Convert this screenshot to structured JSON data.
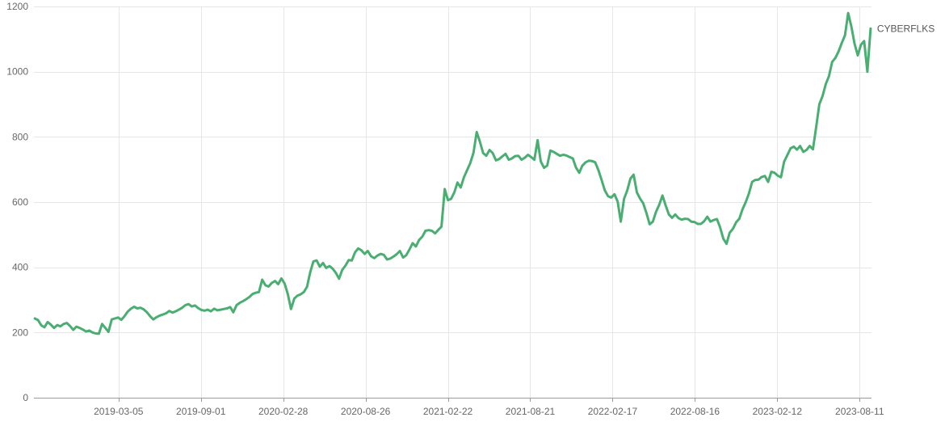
{
  "chart_data": {
    "type": "line",
    "x_axis_type": "time",
    "xlim": [
      "2018-09-01",
      "2023-09-06"
    ],
    "ylim": [
      0,
      1200
    ],
    "xticks": [
      "2019-03-05",
      "2019-09-01",
      "2020-02-28",
      "2020-08-26",
      "2021-02-22",
      "2021-08-21",
      "2022-02-17",
      "2022-08-16",
      "2023-02-12",
      "2023-08-11"
    ],
    "yticks": [
      0,
      200,
      400,
      600,
      800,
      1000,
      1200
    ],
    "grid": true,
    "legend": "none",
    "series_name_position": "line-end",
    "x": [
      "2018-09-03",
      "2018-09-10",
      "2018-09-17",
      "2018-09-24",
      "2018-10-01",
      "2018-10-08",
      "2018-10-15",
      "2018-10-22",
      "2018-10-29",
      "2018-11-05",
      "2018-11-12",
      "2018-11-19",
      "2018-11-26",
      "2018-12-03",
      "2018-12-10",
      "2018-12-17",
      "2018-12-24",
      "2018-12-31",
      "2019-01-07",
      "2019-01-14",
      "2019-01-21",
      "2019-01-28",
      "2019-02-04",
      "2019-02-11",
      "2019-02-18",
      "2019-02-25",
      "2019-03-04",
      "2019-03-11",
      "2019-03-18",
      "2019-03-25",
      "2019-04-01",
      "2019-04-08",
      "2019-04-15",
      "2019-04-22",
      "2019-04-29",
      "2019-05-06",
      "2019-05-13",
      "2019-05-20",
      "2019-05-27",
      "2019-06-03",
      "2019-06-10",
      "2019-06-17",
      "2019-06-24",
      "2019-07-01",
      "2019-07-08",
      "2019-07-15",
      "2019-07-22",
      "2019-07-29",
      "2019-08-05",
      "2019-08-12",
      "2019-08-19",
      "2019-08-26",
      "2019-09-02",
      "2019-09-09",
      "2019-09-16",
      "2019-09-23",
      "2019-09-30",
      "2019-10-07",
      "2019-10-14",
      "2019-10-21",
      "2019-10-28",
      "2019-11-04",
      "2019-11-11",
      "2019-11-18",
      "2019-11-25",
      "2019-12-02",
      "2019-12-09",
      "2019-12-16",
      "2019-12-23",
      "2019-12-30",
      "2020-01-06",
      "2020-01-13",
      "2020-01-20",
      "2020-01-27",
      "2020-02-03",
      "2020-02-10",
      "2020-02-17",
      "2020-02-24",
      "2020-03-02",
      "2020-03-09",
      "2020-03-16",
      "2020-03-23",
      "2020-03-30",
      "2020-04-06",
      "2020-04-13",
      "2020-04-20",
      "2020-04-27",
      "2020-05-04",
      "2020-05-11",
      "2020-05-18",
      "2020-05-25",
      "2020-06-01",
      "2020-06-08",
      "2020-06-15",
      "2020-06-22",
      "2020-06-29",
      "2020-07-06",
      "2020-07-13",
      "2020-07-20",
      "2020-07-27",
      "2020-08-03",
      "2020-08-10",
      "2020-08-17",
      "2020-08-24",
      "2020-08-31",
      "2020-09-07",
      "2020-09-14",
      "2020-09-21",
      "2020-09-28",
      "2020-10-05",
      "2020-10-12",
      "2020-10-19",
      "2020-10-26",
      "2020-11-02",
      "2020-11-09",
      "2020-11-16",
      "2020-11-23",
      "2020-11-30",
      "2020-12-07",
      "2020-12-14",
      "2020-12-21",
      "2020-12-28",
      "2021-01-04",
      "2021-01-11",
      "2021-01-18",
      "2021-01-25",
      "2021-02-01",
      "2021-02-08",
      "2021-02-15",
      "2021-02-22",
      "2021-03-01",
      "2021-03-08",
      "2021-03-15",
      "2021-03-22",
      "2021-03-29",
      "2021-04-05",
      "2021-04-12",
      "2021-04-19",
      "2021-04-26",
      "2021-05-03",
      "2021-05-10",
      "2021-05-17",
      "2021-05-24",
      "2021-05-31",
      "2021-06-07",
      "2021-06-14",
      "2021-06-21",
      "2021-06-28",
      "2021-07-05",
      "2021-07-12",
      "2021-07-19",
      "2021-07-26",
      "2021-08-02",
      "2021-08-09",
      "2021-08-16",
      "2021-08-23",
      "2021-08-30",
      "2021-09-06",
      "2021-09-13",
      "2021-09-20",
      "2021-09-27",
      "2021-10-04",
      "2021-10-11",
      "2021-10-18",
      "2021-10-25",
      "2021-11-01",
      "2021-11-08",
      "2021-11-15",
      "2021-11-22",
      "2021-11-29",
      "2021-12-06",
      "2021-12-13",
      "2021-12-20",
      "2021-12-27",
      "2022-01-03",
      "2022-01-10",
      "2022-01-17",
      "2022-01-24",
      "2022-01-31",
      "2022-02-07",
      "2022-02-14",
      "2022-02-21",
      "2022-02-28",
      "2022-03-07",
      "2022-03-14",
      "2022-03-21",
      "2022-03-28",
      "2022-04-04",
      "2022-04-11",
      "2022-04-18",
      "2022-04-25",
      "2022-05-02",
      "2022-05-09",
      "2022-05-16",
      "2022-05-23",
      "2022-05-30",
      "2022-06-06",
      "2022-06-13",
      "2022-06-20",
      "2022-06-27",
      "2022-07-04",
      "2022-07-11",
      "2022-07-18",
      "2022-07-25",
      "2022-08-01",
      "2022-08-08",
      "2022-08-15",
      "2022-08-22",
      "2022-08-29",
      "2022-09-05",
      "2022-09-12",
      "2022-09-19",
      "2022-09-26",
      "2022-10-03",
      "2022-10-10",
      "2022-10-17",
      "2022-10-24",
      "2022-10-31",
      "2022-11-07",
      "2022-11-14",
      "2022-11-21",
      "2022-11-28",
      "2022-12-05",
      "2022-12-12",
      "2022-12-19",
      "2022-12-26",
      "2023-01-02",
      "2023-01-09",
      "2023-01-16",
      "2023-01-23",
      "2023-01-30",
      "2023-02-06",
      "2023-02-13",
      "2023-02-20",
      "2023-02-27",
      "2023-03-06",
      "2023-03-13",
      "2023-03-20",
      "2023-03-27",
      "2023-04-03",
      "2023-04-10",
      "2023-04-17",
      "2023-04-24",
      "2023-05-01",
      "2023-05-08",
      "2023-05-15",
      "2023-05-22",
      "2023-05-29",
      "2023-06-05",
      "2023-06-12",
      "2023-06-19",
      "2023-06-26",
      "2023-07-03",
      "2023-07-10",
      "2023-07-17",
      "2023-07-24",
      "2023-07-31",
      "2023-08-07",
      "2023-08-14",
      "2023-08-21",
      "2023-08-28",
      "2023-09-04"
    ],
    "series": [
      {
        "name": "CYBERFLKS",
        "color": "#4aae72",
        "values": [
          243,
          238,
          222,
          216,
          232,
          224,
          214,
          223,
          219,
          226,
          229,
          220,
          208,
          218,
          214,
          209,
          203,
          206,
          200,
          197,
          196,
          226,
          214,
          202,
          240,
          243,
          246,
          239,
          250,
          264,
          273,
          279,
          274,
          276,
          271,
          262,
          250,
          240,
          247,
          252,
          255,
          259,
          266,
          261,
          265,
          270,
          276,
          284,
          287,
          280,
          283,
          275,
          269,
          267,
          270,
          265,
          273,
          268,
          270,
          272,
          274,
          278,
          262,
          284,
          291,
          296,
          302,
          309,
          318,
          322,
          324,
          362,
          345,
          341,
          352,
          358,
          348,
          366,
          350,
          318,
          272,
          304,
          313,
          317,
          324,
          340,
          385,
          418,
          421,
          402,
          413,
          398,
          404,
          396,
          383,
          365,
          392,
          405,
          422,
          421,
          446,
          458,
          452,
          441,
          450,
          434,
          428,
          436,
          441,
          438,
          424,
          427,
          433,
          440,
          450,
          430,
          437,
          455,
          474,
          464,
          484,
          494,
          512,
          514,
          512,
          504,
          515,
          525,
          640,
          606,
          610,
          630,
          660,
          645,
          676,
          698,
          720,
          752,
          815,
          785,
          750,
          742,
          760,
          750,
          728,
          732,
          740,
          748,
          730,
          734,
          741,
          742,
          730,
          736,
          745,
          738,
          730,
          790,
          725,
          705,
          712,
          758,
          754,
          748,
          742,
          745,
          743,
          738,
          734,
          706,
          690,
          712,
          722,
          727,
          726,
          722,
          698,
          668,
          636,
          618,
          614,
          624,
          602,
          540,
          610,
          636,
          672,
          684,
          630,
          611,
          596,
          566,
          532,
          540,
          570,
          592,
          620,
          590,
          562,
          552,
          562,
          551,
          546,
          549,
          548,
          540,
          539,
          533,
          533,
          541,
          555,
          540,
          545,
          548,
          523,
          488,
          472,
          506,
          518,
          538,
          549,
          578,
          600,
          626,
          662,
          668,
          669,
          677,
          680,
          662,
          693,
          690,
          681,
          676,
          724,
          744,
          765,
          770,
          761,
          772,
          754,
          760,
          772,
          762,
          830,
          900,
          925,
          962,
          986,
          1030,
          1042,
          1062,
          1088,
          1112,
          1180,
          1138,
          1086,
          1050,
          1083,
          1094,
          1000,
          1132
        ]
      }
    ]
  }
}
